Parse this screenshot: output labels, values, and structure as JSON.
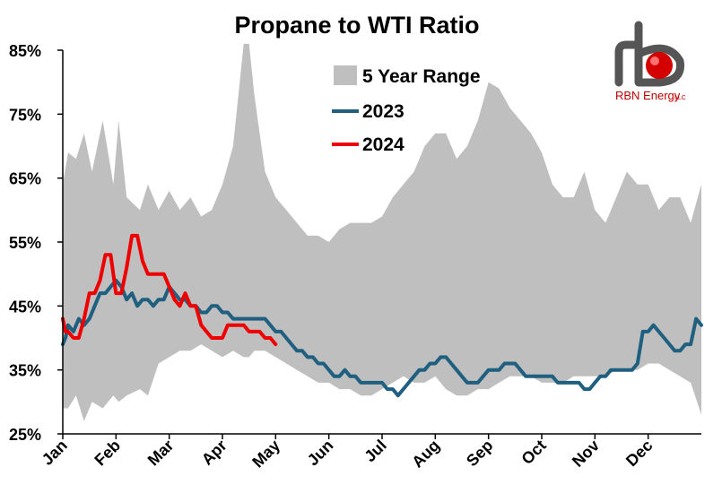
{
  "chart_data": {
    "type": "line",
    "title": "Propane to WTI Ratio",
    "xlabel": "",
    "ylabel": "",
    "x_categories": [
      "Jan",
      "Feb",
      "Mar",
      "Apr",
      "May",
      "Jun",
      "Jul",
      "Aug",
      "Sep",
      "Oct",
      "Nov",
      "Dec"
    ],
    "x_unit": "month (Jan=0 to Dec-end=12)",
    "ylim": [
      25,
      85
    ],
    "y_ticks": [
      25,
      35,
      45,
      55,
      65,
      75,
      85
    ],
    "y_tick_labels": [
      "25%",
      "35%",
      "45%",
      "55%",
      "65%",
      "75%",
      "85%"
    ],
    "grid": false,
    "legend_position": "top-right",
    "range": {
      "name": "5 Year Range",
      "color": "#bfbfbf",
      "x": [
        0,
        0.1,
        0.25,
        0.4,
        0.55,
        0.75,
        0.95,
        1.05,
        1.2,
        1.45,
        1.6,
        1.8,
        2.0,
        2.2,
        2.4,
        2.6,
        2.8,
        3.0,
        3.2,
        3.4,
        3.5,
        3.6,
        3.7,
        3.8,
        4.0,
        4.2,
        4.4,
        4.6,
        4.8,
        5.0,
        5.2,
        5.4,
        5.6,
        5.8,
        6.0,
        6.2,
        6.4,
        6.6,
        6.8,
        7.0,
        7.2,
        7.4,
        7.6,
        7.8,
        8.0,
        8.2,
        8.4,
        8.6,
        8.8,
        9.0,
        9.2,
        9.4,
        9.6,
        9.8,
        10.0,
        10.2,
        10.4,
        10.6,
        10.8,
        11.0,
        11.2,
        11.4,
        11.6,
        11.8,
        12.0
      ],
      "high": [
        64,
        69,
        68,
        72,
        66,
        74,
        64,
        74,
        62,
        60,
        64,
        60,
        63,
        60,
        62,
        59,
        60,
        64,
        70,
        86,
        86,
        78,
        72,
        66,
        62,
        60,
        58,
        56,
        56,
        55,
        57,
        58,
        58,
        58,
        59,
        62,
        64,
        66,
        70,
        72,
        72,
        68,
        70,
        74,
        80,
        79,
        76,
        74,
        72,
        69,
        64,
        62,
        62,
        66,
        60,
        58,
        62,
        66,
        64,
        64,
        60,
        62,
        62,
        58,
        64
      ],
      "low": [
        29,
        29,
        31,
        27,
        30,
        29,
        31,
        30,
        31,
        32,
        31,
        36,
        37,
        38,
        38,
        39,
        38,
        37,
        38,
        37,
        37,
        38,
        38,
        38,
        37,
        36,
        35,
        34,
        33,
        33,
        32,
        32,
        31,
        31,
        32,
        33,
        34,
        33,
        33,
        34,
        32,
        31,
        31,
        32,
        32,
        33,
        34,
        34,
        34,
        33,
        33,
        33,
        34,
        34,
        34,
        34,
        35,
        35,
        35,
        36,
        36,
        35,
        34,
        33,
        28
      ]
    },
    "series": [
      {
        "name": "2023",
        "color": "#1f5f7f",
        "x": [
          0,
          0.05,
          0.1,
          0.2,
          0.3,
          0.4,
          0.5,
          0.6,
          0.7,
          0.8,
          0.9,
          1.0,
          1.1,
          1.2,
          1.3,
          1.4,
          1.5,
          1.6,
          1.7,
          1.8,
          1.9,
          2.0,
          2.1,
          2.2,
          2.3,
          2.4,
          2.5,
          2.6,
          2.7,
          2.8,
          2.9,
          3.0,
          3.1,
          3.2,
          3.3,
          3.4,
          3.5,
          3.6,
          3.7,
          3.8,
          3.9,
          4.0,
          4.1,
          4.2,
          4.3,
          4.4,
          4.5,
          4.6,
          4.7,
          4.8,
          4.9,
          5.0,
          5.1,
          5.2,
          5.3,
          5.4,
          5.5,
          5.6,
          5.7,
          5.8,
          5.9,
          6.0,
          6.1,
          6.2,
          6.3,
          6.4,
          6.5,
          6.6,
          6.7,
          6.8,
          6.9,
          7.0,
          7.1,
          7.2,
          7.3,
          7.4,
          7.5,
          7.6,
          7.7,
          7.8,
          7.9,
          8.0,
          8.1,
          8.2,
          8.3,
          8.4,
          8.5,
          8.6,
          8.7,
          8.8,
          8.9,
          9.0,
          9.1,
          9.2,
          9.3,
          9.4,
          9.5,
          9.6,
          9.7,
          9.8,
          9.9,
          10.0,
          10.1,
          10.2,
          10.3,
          10.4,
          10.5,
          10.6,
          10.7,
          10.8,
          10.9,
          11.0,
          11.1,
          11.2,
          11.3,
          11.4,
          11.5,
          11.6,
          11.7,
          11.8,
          11.9,
          12.0
        ],
        "y": [
          39,
          40,
          42,
          41,
          43,
          42,
          43,
          45,
          47,
          47,
          48,
          49,
          48,
          46,
          47,
          45,
          46,
          46,
          45,
          46,
          46,
          48,
          47,
          46,
          46,
          45,
          45,
          44,
          44,
          45,
          45,
          44,
          44,
          43,
          43,
          43,
          43,
          43,
          43,
          43,
          42,
          41,
          41,
          40,
          39,
          38,
          38,
          37,
          37,
          36,
          36,
          35,
          34,
          34,
          35,
          34,
          34,
          33,
          33,
          33,
          33,
          33,
          32,
          32,
          31,
          32,
          33,
          34,
          35,
          35,
          36,
          36,
          37,
          37,
          36,
          35,
          34,
          33,
          33,
          33,
          34,
          35,
          35,
          35,
          36,
          36,
          36,
          35,
          34,
          34,
          34,
          34,
          34,
          34,
          33,
          33,
          33,
          33,
          33,
          32,
          32,
          33,
          34,
          34,
          35,
          35,
          35,
          35,
          35,
          36,
          41,
          41,
          42,
          41,
          40,
          39,
          38,
          38,
          39,
          39,
          43,
          42
        ]
      },
      {
        "name": "2024",
        "color": "#ee0000",
        "x": [
          0,
          0.05,
          0.1,
          0.2,
          0.3,
          0.4,
          0.5,
          0.6,
          0.7,
          0.8,
          0.9,
          1.0,
          1.1,
          1.2,
          1.3,
          1.4,
          1.5,
          1.6,
          1.7,
          1.8,
          1.9,
          2.0,
          2.1,
          2.2,
          2.3,
          2.4,
          2.5,
          2.6,
          2.7,
          2.8,
          2.9,
          3.0,
          3.1,
          3.2,
          3.3,
          3.4,
          3.5,
          3.6,
          3.7,
          3.8,
          3.9,
          4.0
        ],
        "y": [
          43,
          41,
          41,
          40,
          40,
          43,
          47,
          47,
          49,
          53,
          53,
          47,
          47,
          51,
          56,
          56,
          52,
          50,
          50,
          50,
          50,
          48,
          46,
          45,
          47,
          45,
          45,
          42,
          41,
          40,
          40,
          40,
          42,
          42,
          42,
          42,
          41,
          41,
          41,
          40,
          40,
          39
        ]
      }
    ]
  },
  "legend": {
    "range_label": "5 Year Range",
    "s2023_label": "2023",
    "s2024_label": "2024"
  },
  "logo": {
    "letters": "rb",
    "name": "RBN Energy",
    "suffix": "LLC"
  }
}
